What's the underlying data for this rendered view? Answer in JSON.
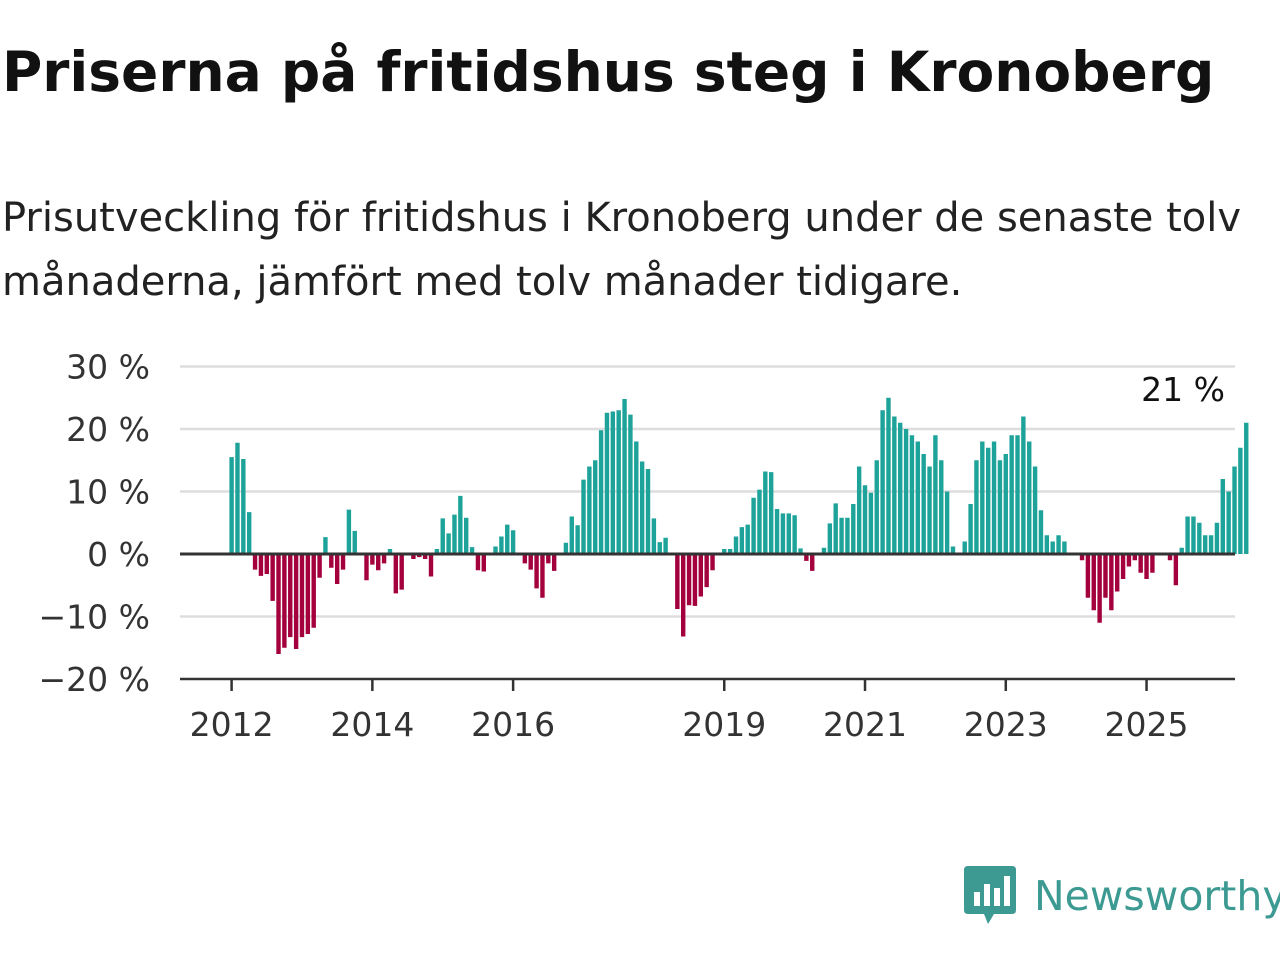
{
  "header": {
    "title": "Priserna på fritidshus steg i Kronoberg",
    "subtitle": "Prisutveckling för fritidshus i Kronoberg under de senaste tolv månaderna, jämfört med tolv månader tidigare."
  },
  "brand": {
    "name": "Newsworthy",
    "icon": "newsworthy-logo-icon",
    "color": "#3c9a92"
  },
  "chart_data": {
    "type": "bar",
    "title": "",
    "xlabel": "",
    "ylabel": "",
    "ylim": [
      -20,
      30
    ],
    "yticks": [
      {
        "value": 30,
        "label": "30 %"
      },
      {
        "value": 20,
        "label": "20 %"
      },
      {
        "value": 10,
        "label": "10 %"
      },
      {
        "value": 0,
        "label": "0 %"
      },
      {
        "value": -10,
        "label": "−10 %"
      },
      {
        "value": -20,
        "label": "−20 %"
      }
    ],
    "xticks": [
      {
        "date": "2012-01",
        "label": "2012"
      },
      {
        "date": "2014-01",
        "label": "2014"
      },
      {
        "date": "2016-01",
        "label": "2016"
      },
      {
        "date": "2019-01",
        "label": "2019"
      },
      {
        "date": "2021-01",
        "label": "2021"
      },
      {
        "date": "2023-01",
        "label": "2023"
      },
      {
        "date": "2025-01",
        "label": "2025"
      }
    ],
    "grid": true,
    "colors": {
      "positive": "#1ea39a",
      "negative": "#a3003d"
    },
    "start": "2012-01",
    "end": "2025-07",
    "values": [
      15.5,
      17.8,
      15.2,
      6.7,
      -2.5,
      -3.5,
      -3.2,
      -7.5,
      -16,
      -15,
      -13.3,
      -15.2,
      -13.3,
      -12.8,
      -11.8,
      -3.8,
      2.7,
      -2.2,
      -4.8,
      -2.5,
      7.1,
      3.7,
      0,
      -4.2,
      -1.7,
      -2.6,
      -1.5,
      0.8,
      -6.3,
      -5.7,
      0,
      -0.8,
      -0.5,
      -0.8,
      -3.6,
      0.8,
      5.7,
      3.3,
      6.3,
      9.3,
      5.8,
      1.1,
      -2.6,
      -2.8,
      0,
      1.2,
      2.8,
      4.7,
      3.8,
      0,
      -1.5,
      -2.5,
      -5.5,
      -7,
      -1.5,
      -2.7,
      0,
      1.8,
      6,
      4.6,
      11.9,
      14,
      15,
      19.8,
      22.6,
      22.8,
      23,
      24.8,
      22.3,
      18,
      14.8,
      13.6,
      5.7,
      1.9,
      2.6,
      0,
      -8.8,
      -13.2,
      -8.2,
      -8.3,
      -6.8,
      -5.3,
      -2.6,
      0,
      0.8,
      0.8,
      2.8,
      4.3,
      4.7,
      9,
      10.3,
      13.2,
      13.1,
      7.2,
      6.5,
      6.5,
      6.2,
      0.9,
      -1.1,
      -2.7,
      0,
      1,
      4.9,
      8.1,
      5.8,
      5.8,
      8,
      14,
      11,
      9.8,
      15,
      23,
      25,
      22,
      21,
      20,
      19,
      18,
      16,
      14,
      19,
      15,
      10,
      1.2,
      0,
      2,
      8,
      15,
      18,
      17,
      18,
      15,
      16,
      19,
      19,
      22,
      18,
      14,
      7,
      3,
      2,
      3,
      2,
      0,
      0,
      -1,
      -7,
      -9,
      -11,
      -7,
      -9,
      -6,
      -4,
      -2,
      -1,
      -3,
      -4,
      -3,
      0,
      0,
      -1,
      -5,
      1,
      6,
      6,
      5,
      3,
      3,
      5,
      12,
      10,
      14,
      17,
      21
    ]
  },
  "annotation": {
    "label": "21 %",
    "date": "2025-07"
  }
}
